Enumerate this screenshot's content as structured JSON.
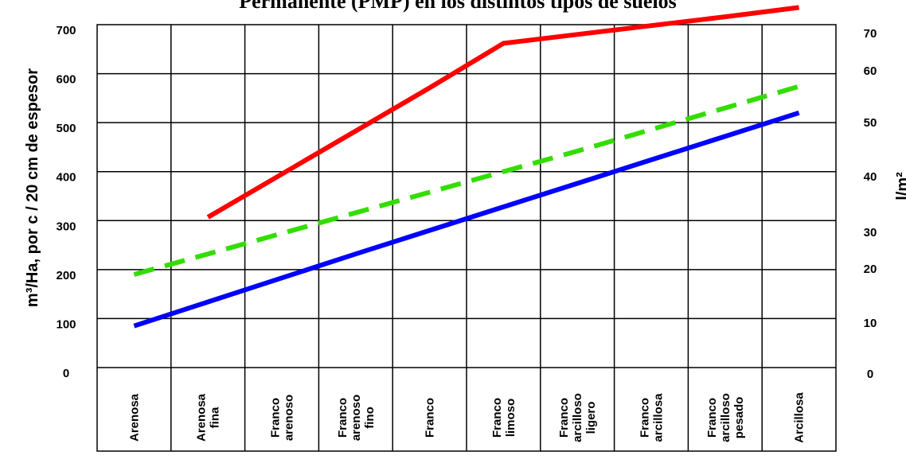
{
  "chart_data": {
    "type": "line",
    "title": "Permanente (PMP) en los distintos tipos de suelos",
    "ylabel_left": "m³/Ha, por c / 20 cm de espesor",
    "ylabel_right": "l/m²",
    "left_ticks": [
      "0",
      "100",
      "200",
      "300",
      "400",
      "500",
      "600",
      "700"
    ],
    "right_ticks": [
      "0",
      "10",
      "20",
      "30",
      "40",
      "50",
      "60",
      "70"
    ],
    "ylim": [
      0,
      700
    ],
    "grid": true,
    "categories": [
      "Arenosa",
      "Arenosa fina",
      "Franco arenoso",
      "Franco arenoso fino",
      "Franco",
      "Franco limoso",
      "Franco arcilloso ligero",
      "Franco arcillosa",
      "Franco arcilloso pesado",
      "Arcillosa"
    ],
    "series": [
      {
        "color": "#ff0000",
        "dash": false,
        "values": [
          null,
          307,
          395,
          483,
          571,
          662,
          680,
          698,
          716,
          735
        ]
      },
      {
        "color": "#33dd00",
        "dash": true,
        "values": [
          190,
          232,
          274,
          316,
          358,
          400,
          442,
          486,
          530,
          574
        ]
      },
      {
        "color": "#0000ff",
        "dash": false,
        "values": [
          85,
          134,
          183,
          232,
          280,
          328,
          376,
          424,
          472,
          520
        ]
      }
    ]
  }
}
